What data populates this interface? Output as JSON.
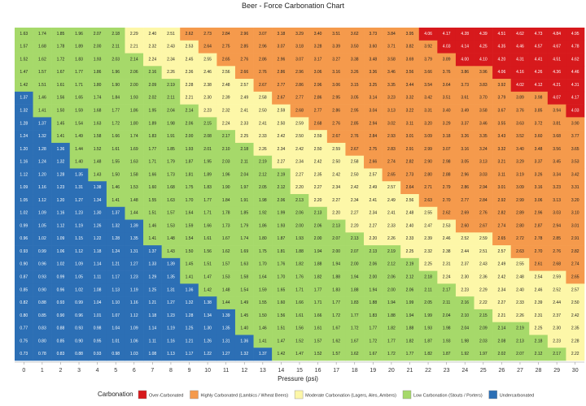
{
  "chart_data": {
    "type": "heatmap",
    "title": "Beer - Force Carbonation Chart",
    "xlabel": "Pressure (psi)",
    "ylabel": "",
    "x": [
      0,
      1,
      2,
      3,
      4,
      5,
      6,
      7,
      8,
      9,
      10,
      11,
      12,
      13,
      14,
      15,
      16,
      17,
      18,
      19,
      20,
      21,
      22,
      23,
      24,
      25,
      26,
      27,
      28,
      29,
      30
    ],
    "grid": false,
    "legend": {
      "title": "Carbonation",
      "placement": "bottom",
      "entries": [
        {
          "name": "Over-Carbonated",
          "color": "#d7191c"
        },
        {
          "name": "Highly Carbonated (Lambics / Wheat Beers)",
          "color": "#f59a4c"
        },
        {
          "name": "Moderate Carbonation (Lagers, Ales, Ambers)",
          "color": "#fdf7a8"
        },
        {
          "name": "Low Carbonation (Stouts / Porters)",
          "color": "#a6d96a"
        },
        {
          "name": "Undercarbonated",
          "color": "#2c6fb5"
        }
      ]
    },
    "rows": [
      [
        1.63,
        1.74,
        1.85,
        1.96,
        2.07,
        2.18,
        2.29,
        2.4,
        2.51,
        2.62,
        2.73,
        2.84,
        2.96,
        3.07,
        3.18,
        3.29,
        3.4,
        3.51,
        3.62,
        3.73,
        3.84,
        3.95,
        4.06,
        4.17,
        4.28,
        4.39,
        4.51,
        4.62,
        4.73,
        4.84,
        4.95
      ],
      [
        1.57,
        1.68,
        1.78,
        1.89,
        2.0,
        2.11,
        2.21,
        2.32,
        2.43,
        2.53,
        2.64,
        2.75,
        2.85,
        2.96,
        3.07,
        3.18,
        3.28,
        3.39,
        3.5,
        3.6,
        3.71,
        3.82,
        3.92,
        4.03,
        4.14,
        4.25,
        4.35,
        4.46,
        4.57,
        4.67,
        4.78
      ],
      [
        1.52,
        1.62,
        1.72,
        1.83,
        1.93,
        2.03,
        2.14,
        2.24,
        2.34,
        2.45,
        2.55,
        2.65,
        2.76,
        2.86,
        2.96,
        3.07,
        3.17,
        3.27,
        3.38,
        3.48,
        3.58,
        3.69,
        3.79,
        3.89,
        4.0,
        4.1,
        4.2,
        4.31,
        4.41,
        4.51,
        4.62
      ],
      [
        1.47,
        1.57,
        1.67,
        1.77,
        1.86,
        1.96,
        2.06,
        2.16,
        2.26,
        2.36,
        2.46,
        2.56,
        2.66,
        2.76,
        2.86,
        2.96,
        3.06,
        3.16,
        3.26,
        3.36,
        3.46,
        3.56,
        3.66,
        3.76,
        3.86,
        3.96,
        4.06,
        4.16,
        4.26,
        4.36,
        4.46
      ],
      [
        1.42,
        1.51,
        1.61,
        1.71,
        1.8,
        1.9,
        2.0,
        2.09,
        2.19,
        2.28,
        2.38,
        2.48,
        2.57,
        2.67,
        2.77,
        2.86,
        2.96,
        3.06,
        3.15,
        3.25,
        3.35,
        3.44,
        3.54,
        3.64,
        3.73,
        3.83,
        3.92,
        4.02,
        4.12,
        4.21,
        4.31
      ],
      [
        1.37,
        1.46,
        1.56,
        1.65,
        1.74,
        1.84,
        1.93,
        2.02,
        2.11,
        2.21,
        2.3,
        2.39,
        2.49,
        2.58,
        2.67,
        2.77,
        2.86,
        2.95,
        3.05,
        3.14,
        3.23,
        3.32,
        3.42,
        3.51,
        3.61,
        3.7,
        3.79,
        3.89,
        3.98,
        4.07,
        4.17
      ],
      [
        1.32,
        1.41,
        1.5,
        1.59,
        1.68,
        1.77,
        1.86,
        1.95,
        2.04,
        2.14,
        2.23,
        2.32,
        2.41,
        2.5,
        2.59,
        2.68,
        2.77,
        2.86,
        2.95,
        3.04,
        3.13,
        3.22,
        3.31,
        3.4,
        3.49,
        3.58,
        3.67,
        3.76,
        3.85,
        3.94,
        4.03
      ],
      [
        1.28,
        1.37,
        1.45,
        1.54,
        1.63,
        1.72,
        1.8,
        1.89,
        1.98,
        2.06,
        2.15,
        2.24,
        2.33,
        2.41,
        2.5,
        2.59,
        2.68,
        2.76,
        2.85,
        2.94,
        3.02,
        3.11,
        3.2,
        3.29,
        3.37,
        3.46,
        3.55,
        3.63,
        3.72,
        3.81,
        3.9
      ],
      [
        1.24,
        1.32,
        1.41,
        1.49,
        1.58,
        1.66,
        1.74,
        1.83,
        1.91,
        2.0,
        2.08,
        2.17,
        2.25,
        2.33,
        2.42,
        2.5,
        2.59,
        2.67,
        2.76,
        2.84,
        2.93,
        3.01,
        3.09,
        3.18,
        3.26,
        3.35,
        3.43,
        3.52,
        3.6,
        3.68,
        3.77
      ],
      [
        1.2,
        1.28,
        1.36,
        1.44,
        1.52,
        1.61,
        1.69,
        1.77,
        1.85,
        1.93,
        2.01,
        2.1,
        2.18,
        2.26,
        2.34,
        2.42,
        2.5,
        2.59,
        2.67,
        2.75,
        2.83,
        2.91,
        2.99,
        3.07,
        3.16,
        3.24,
        3.32,
        3.4,
        3.48,
        3.56,
        3.65
      ],
      [
        1.16,
        1.24,
        1.32,
        1.4,
        1.48,
        1.55,
        1.63,
        1.71,
        1.79,
        1.87,
        1.95,
        2.03,
        2.11,
        2.19,
        2.27,
        2.34,
        2.42,
        2.5,
        2.58,
        2.66,
        2.74,
        2.82,
        2.9,
        2.98,
        3.05,
        3.13,
        3.21,
        3.29,
        3.37,
        3.45,
        3.53
      ],
      [
        1.12,
        1.2,
        1.28,
        1.35,
        1.43,
        1.5,
        1.58,
        1.66,
        1.73,
        1.81,
        1.89,
        1.96,
        2.04,
        2.12,
        2.19,
        2.27,
        2.35,
        2.42,
        2.5,
        2.57,
        2.65,
        2.73,
        2.8,
        2.88,
        2.96,
        3.03,
        3.11,
        3.19,
        3.26,
        3.34,
        3.42
      ],
      [
        1.09,
        1.16,
        1.23,
        1.31,
        1.38,
        1.46,
        1.53,
        1.6,
        1.68,
        1.75,
        1.83,
        1.9,
        1.97,
        2.05,
        2.12,
        2.2,
        2.27,
        2.34,
        2.42,
        2.49,
        2.57,
        2.64,
        2.71,
        2.79,
        2.86,
        2.94,
        3.01,
        3.09,
        3.16,
        3.23,
        3.31
      ],
      [
        1.05,
        1.12,
        1.2,
        1.27,
        1.34,
        1.41,
        1.48,
        1.55,
        1.63,
        1.7,
        1.77,
        1.84,
        1.91,
        1.98,
        2.06,
        2.13,
        2.2,
        2.27,
        2.34,
        2.41,
        2.49,
        2.56,
        2.63,
        2.7,
        2.77,
        2.84,
        2.92,
        2.99,
        3.06,
        3.13,
        3.2
      ],
      [
        1.02,
        1.09,
        1.16,
        1.23,
        1.3,
        1.37,
        1.44,
        1.51,
        1.57,
        1.64,
        1.71,
        1.78,
        1.85,
        1.92,
        1.99,
        2.06,
        2.13,
        2.2,
        2.27,
        2.34,
        2.41,
        2.48,
        2.55,
        2.62,
        2.69,
        2.76,
        2.82,
        2.89,
        2.96,
        3.03,
        3.1
      ],
      [
        0.99,
        1.05,
        1.12,
        1.19,
        1.26,
        1.32,
        1.39,
        1.46,
        1.53,
        1.59,
        1.66,
        1.73,
        1.79,
        1.86,
        1.93,
        2.0,
        2.06,
        2.13,
        2.2,
        2.27,
        2.33,
        2.4,
        2.47,
        2.53,
        2.6,
        2.67,
        2.74,
        2.8,
        2.87,
        2.94,
        3.01
      ],
      [
        0.96,
        1.02,
        1.09,
        1.15,
        1.22,
        1.28,
        1.35,
        1.41,
        1.48,
        1.54,
        1.61,
        1.67,
        1.74,
        1.8,
        1.87,
        1.93,
        2.0,
        2.07,
        2.13,
        2.2,
        2.26,
        2.33,
        2.39,
        2.46,
        2.52,
        2.59,
        2.65,
        2.72,
        2.78,
        2.85,
        2.91
      ],
      [
        0.93,
        0.99,
        1.06,
        1.12,
        1.18,
        1.24,
        1.31,
        1.37,
        1.43,
        1.5,
        1.56,
        1.62,
        1.69,
        1.75,
        1.81,
        1.88,
        1.94,
        2.0,
        2.07,
        2.13,
        2.19,
        2.25,
        2.32,
        2.38,
        2.44,
        2.51,
        2.57,
        2.63,
        2.7,
        2.76,
        2.82
      ],
      [
        0.9,
        0.96,
        1.02,
        1.09,
        1.14,
        1.21,
        1.27,
        1.33,
        1.39,
        1.45,
        1.51,
        1.57,
        1.63,
        1.7,
        1.76,
        1.82,
        1.88,
        1.94,
        2.0,
        2.06,
        2.12,
        2.19,
        2.25,
        2.31,
        2.37,
        2.43,
        2.49,
        2.55,
        2.61,
        2.68,
        2.74
      ],
      [
        0.87,
        0.93,
        0.99,
        1.05,
        1.11,
        1.17,
        1.23,
        1.29,
        1.35,
        1.41,
        1.47,
        1.53,
        1.58,
        1.64,
        1.7,
        1.76,
        1.82,
        1.88,
        1.94,
        2.0,
        2.06,
        2.12,
        2.18,
        2.24,
        2.3,
        2.36,
        2.42,
        2.48,
        2.54,
        2.59,
        2.65
      ],
      [
        0.85,
        0.9,
        0.96,
        1.02,
        1.08,
        1.13,
        1.19,
        1.25,
        1.31,
        1.36,
        1.42,
        1.48,
        1.54,
        1.59,
        1.65,
        1.71,
        1.77,
        1.83,
        1.88,
        1.94,
        2.0,
        2.06,
        2.11,
        2.17,
        2.23,
        2.29,
        2.34,
        2.4,
        2.46,
        2.52,
        2.57
      ],
      [
        0.82,
        0.88,
        0.93,
        0.99,
        1.04,
        1.1,
        1.16,
        1.21,
        1.27,
        1.32,
        1.38,
        1.44,
        1.49,
        1.55,
        1.6,
        1.66,
        1.71,
        1.77,
        1.83,
        1.88,
        1.94,
        1.99,
        2.05,
        2.11,
        2.16,
        2.22,
        2.27,
        2.33,
        2.39,
        2.44,
        2.5
      ],
      [
        0.8,
        0.85,
        0.9,
        0.96,
        1.01,
        1.07,
        1.12,
        1.18,
        1.23,
        1.28,
        1.34,
        1.39,
        1.45,
        1.5,
        1.56,
        1.61,
        1.66,
        1.72,
        1.77,
        1.83,
        1.88,
        1.94,
        1.99,
        2.04,
        2.1,
        2.15,
        2.21,
        2.26,
        2.31,
        2.37,
        2.42
      ],
      [
        0.77,
        0.83,
        0.88,
        0.93,
        0.98,
        1.04,
        1.09,
        1.14,
        1.19,
        1.25,
        1.3,
        1.35,
        1.4,
        1.46,
        1.51,
        1.56,
        1.61,
        1.67,
        1.72,
        1.77,
        1.82,
        1.88,
        1.93,
        1.98,
        2.04,
        2.09,
        2.14,
        2.19,
        2.25,
        2.3,
        2.35
      ],
      [
        0.75,
        0.8,
        0.85,
        0.9,
        0.95,
        1.01,
        1.06,
        1.11,
        1.16,
        1.21,
        1.26,
        1.31,
        1.36,
        1.41,
        1.47,
        1.52,
        1.57,
        1.62,
        1.67,
        1.72,
        1.77,
        1.82,
        1.87,
        1.93,
        1.98,
        2.03,
        2.08,
        2.13,
        2.18,
        2.23,
        2.28
      ],
      [
        0.73,
        0.78,
        0.83,
        0.88,
        0.93,
        0.98,
        1.03,
        1.08,
        1.13,
        1.17,
        1.22,
        1.27,
        1.32,
        1.37,
        1.42,
        1.47,
        1.52,
        1.57,
        1.62,
        1.67,
        1.72,
        1.77,
        1.82,
        1.87,
        1.92,
        1.97,
        2.02,
        2.07,
        2.12,
        2.17,
        2.22
      ]
    ],
    "thresholds": {
      "low": 1.4,
      "moderate": 2.2,
      "high": 2.6,
      "over": 4.0
    }
  }
}
